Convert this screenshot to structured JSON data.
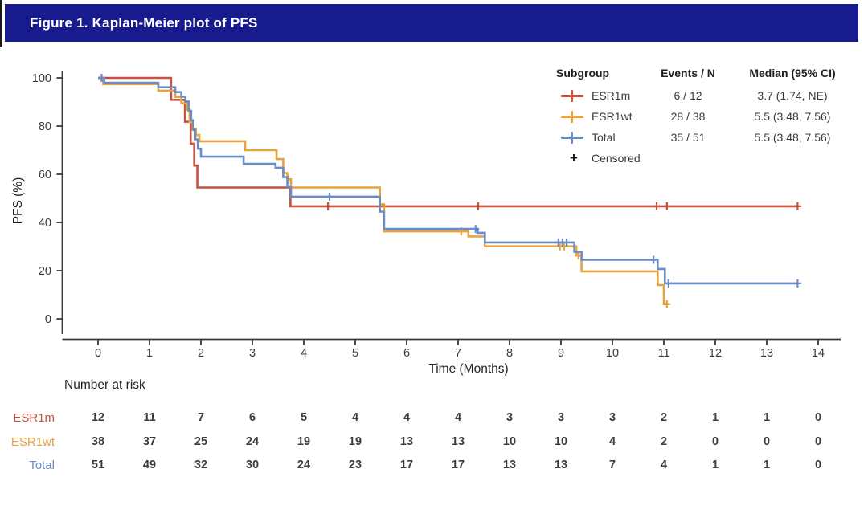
{
  "header": {
    "title": "Figure 1. Kaplan-Meier plot of PFS",
    "bg_color": "#181b8e",
    "text_color": "#ffffff"
  },
  "chart_data": {
    "type": "line",
    "subtype": "kaplan-meier-step",
    "title": "",
    "xlabel": "Time (Months)",
    "ylabel": "PFS (%)",
    "xlim": [
      0,
      14
    ],
    "ylim": [
      0,
      100
    ],
    "xticks": [
      0,
      1,
      2,
      3,
      4,
      5,
      6,
      7,
      8,
      9,
      10,
      11,
      12,
      13,
      14
    ],
    "yticks": [
      0,
      20,
      40,
      60,
      80,
      100
    ],
    "grid": false,
    "legend_position": "top-right",
    "legend": {
      "columns": [
        "Subgroup",
        "Events / N",
        "Median (95% CI)"
      ],
      "rows": [
        {
          "label": "ESR1m",
          "events_n": "6 / 12",
          "median": "3.7 (1.74, NE)",
          "color": "#c5523f"
        },
        {
          "label": "ESR1wt",
          "events_n": "28 / 38",
          "median": "5.5 (3.48, 7.56)",
          "color": "#e9a23e"
        },
        {
          "label": "Total",
          "events_n": "35 / 51",
          "median": "5.5 (3.48, 7.56)",
          "color": "#6a8cc7"
        }
      ],
      "censored_label": "Censored",
      "censored_color": "#111111"
    },
    "series": [
      {
        "name": "ESR1m",
        "color": "#c5523f",
        "end": 13.6,
        "steps": [
          [
            0,
            100
          ],
          [
            1.42,
            90.9
          ],
          [
            1.69,
            81.8
          ],
          [
            1.8,
            72.7
          ],
          [
            1.87,
            63.6
          ],
          [
            1.93,
            54.5
          ],
          [
            3.74,
            46.7
          ]
        ],
        "censors": [
          [
            0.07,
            100
          ],
          [
            4.47,
            46.7
          ],
          [
            7.39,
            46.7
          ],
          [
            10.86,
            46.7
          ],
          [
            11.06,
            46.7
          ],
          [
            13.6,
            46.7
          ]
        ]
      },
      {
        "name": "ESR1wt",
        "color": "#e9a23e",
        "end": 11.1,
        "steps": [
          [
            0,
            100
          ],
          [
            0.1,
            97.4
          ],
          [
            1.17,
            94.7
          ],
          [
            1.5,
            92.1
          ],
          [
            1.62,
            89.5
          ],
          [
            1.72,
            86.8
          ],
          [
            1.78,
            81.6
          ],
          [
            1.84,
            78.9
          ],
          [
            1.9,
            76.3
          ],
          [
            1.97,
            73.7
          ],
          [
            2.86,
            70.0
          ],
          [
            3.47,
            66.3
          ],
          [
            3.6,
            60.5
          ],
          [
            3.68,
            57.9
          ],
          [
            3.75,
            54.5
          ],
          [
            5.48,
            47.5
          ],
          [
            5.56,
            36.3
          ],
          [
            7.2,
            34.2
          ],
          [
            7.52,
            30.1
          ],
          [
            9.3,
            26.3
          ],
          [
            9.4,
            19.7
          ],
          [
            10.88,
            14.0
          ],
          [
            11.0,
            6.1
          ]
        ],
        "censors": [
          [
            7.06,
            36.3
          ],
          [
            8.98,
            30.1
          ],
          [
            9.06,
            30.1
          ],
          [
            9.34,
            26.3
          ],
          [
            11.06,
            6.1
          ]
        ]
      },
      {
        "name": "Total",
        "color": "#6a8cc7",
        "end": 13.6,
        "steps": [
          [
            0,
            100
          ],
          [
            0.12,
            98.0
          ],
          [
            1.17,
            96.1
          ],
          [
            1.5,
            94.1
          ],
          [
            1.62,
            92.2
          ],
          [
            1.7,
            90.2
          ],
          [
            1.76,
            86.3
          ],
          [
            1.81,
            82.4
          ],
          [
            1.85,
            78.4
          ],
          [
            1.89,
            74.5
          ],
          [
            1.94,
            70.6
          ],
          [
            2.0,
            67.3
          ],
          [
            2.83,
            64.3
          ],
          [
            3.45,
            62.7
          ],
          [
            3.6,
            58.8
          ],
          [
            3.68,
            54.9
          ],
          [
            3.75,
            50.7
          ],
          [
            5.48,
            44.5
          ],
          [
            5.56,
            37.3
          ],
          [
            7.38,
            35.7
          ],
          [
            7.52,
            31.7
          ],
          [
            9.26,
            27.8
          ],
          [
            9.4,
            24.5
          ],
          [
            10.88,
            20.7
          ],
          [
            11.02,
            14.7
          ]
        ],
        "censors": [
          [
            0.07,
            100
          ],
          [
            4.5,
            50.7
          ],
          [
            7.34,
            37.3
          ],
          [
            8.95,
            31.7
          ],
          [
            9.03,
            31.7
          ],
          [
            9.11,
            31.7
          ],
          [
            10.8,
            24.5
          ],
          [
            11.09,
            14.7
          ],
          [
            13.6,
            14.7
          ]
        ]
      }
    ],
    "risk_table": {
      "title": "Number at risk",
      "months": [
        0,
        1,
        2,
        3,
        4,
        5,
        6,
        7,
        8,
        9,
        10,
        11,
        12,
        13,
        14
      ],
      "rows": [
        {
          "label": "ESR1m",
          "color": "#c5523f",
          "values": [
            12,
            11,
            7,
            6,
            5,
            4,
            4,
            4,
            3,
            3,
            3,
            2,
            1,
            1,
            0
          ]
        },
        {
          "label": "ESR1wt",
          "color": "#e9a23e",
          "values": [
            38,
            37,
            25,
            24,
            19,
            19,
            13,
            13,
            10,
            10,
            4,
            2,
            0,
            0,
            0
          ]
        },
        {
          "label": "Total",
          "color": "#6a8cc7",
          "values": [
            51,
            49,
            32,
            30,
            24,
            23,
            17,
            17,
            13,
            13,
            7,
            4,
            1,
            1,
            0
          ]
        }
      ]
    }
  }
}
